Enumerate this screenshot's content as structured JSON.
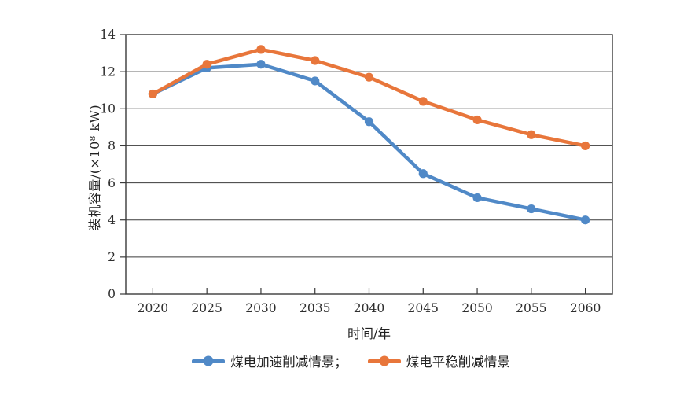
{
  "chart_data": {
    "type": "line",
    "categories": [
      "2020",
      "2025",
      "2030",
      "2035",
      "2040",
      "2045",
      "2050",
      "2055",
      "2060"
    ],
    "series": [
      {
        "name": "煤电加速削减情景",
        "legend_label": "煤电加速削减情景；",
        "color": "#5089C7",
        "values": [
          10.8,
          12.2,
          12.4,
          11.5,
          9.3,
          6.5,
          5.2,
          4.6,
          4.0
        ]
      },
      {
        "name": "煤电平稳削减情景",
        "legend_label": "煤电平稳削减情景",
        "color": "#E8763B",
        "values": [
          10.8,
          12.4,
          13.2,
          12.6,
          11.7,
          10.4,
          9.4,
          8.6,
          8.0
        ]
      }
    ],
    "title": "",
    "xlabel": "时间/年",
    "ylabel": "装机容量/(×10⁸ kW)",
    "ylim": [
      0,
      14
    ],
    "yticks": [
      0,
      2,
      4,
      6,
      8,
      10,
      12,
      14
    ],
    "grid": "horizontal",
    "legend_position": "bottom",
    "axis_color": "#3a3a3a",
    "tick_label_color": "#2e2e2e"
  }
}
